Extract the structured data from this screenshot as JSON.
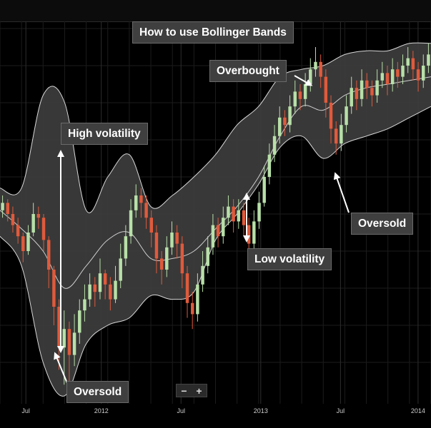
{
  "title": "How to use Bollinger Bands",
  "annotations": {
    "overbought": "Overbought",
    "high_volatility": "High volatility",
    "low_volatility": "Low volatility",
    "oversold_right": "Oversold",
    "oversold_left": "Oversold"
  },
  "zoom": {
    "minus": "−",
    "plus": "+"
  },
  "colors": {
    "up": "#b8e0a8",
    "down": "#e05a3c",
    "band_fill": "#3d3d3d",
    "band_edge": "#d8d8d8",
    "midline": "#cfcfcf",
    "background": "#000000"
  },
  "chart_data": {
    "type": "candlestick",
    "title": "How to use Bollinger Bands",
    "indicator": "Bollinger Bands",
    "x_ticks": [
      "Jul",
      "2012",
      "Jul",
      "2013",
      "Jul",
      "2014"
    ],
    "grid": true,
    "legend": "none",
    "y_range": [
      0,
      100
    ],
    "bands": {
      "x": [
        0,
        5,
        10,
        15,
        20,
        25,
        30,
        35,
        40,
        45,
        50,
        55,
        60,
        65,
        70,
        75,
        80,
        85,
        90,
        95,
        100
      ],
      "upper": [
        57,
        57,
        82,
        80,
        51,
        60,
        66,
        52,
        55,
        60,
        66,
        74,
        79,
        87,
        89,
        90,
        93,
        94,
        94,
        96,
        96
      ],
      "middle": [
        51,
        46,
        40,
        30,
        36,
        43,
        45,
        38,
        38,
        40,
        46,
        52,
        60,
        71,
        79,
        78,
        82,
        84,
        85,
        86,
        87
      ],
      "lower": [
        44,
        36,
        10,
        1,
        15,
        20,
        22,
        28,
        27,
        29,
        43,
        50,
        58,
        68,
        71,
        65,
        69,
        71,
        73,
        76,
        79
      ]
    },
    "candles": [
      {
        "o": 51,
        "c": 53,
        "h": 55,
        "l": 49
      },
      {
        "o": 53,
        "c": 50,
        "h": 54,
        "l": 48
      },
      {
        "o": 50,
        "c": 47,
        "h": 52,
        "l": 45
      },
      {
        "o": 47,
        "c": 44,
        "h": 49,
        "l": 42
      },
      {
        "o": 44,
        "c": 40,
        "h": 45,
        "l": 37
      },
      {
        "o": 40,
        "c": 45,
        "h": 47,
        "l": 39
      },
      {
        "o": 45,
        "c": 50,
        "h": 53,
        "l": 44
      },
      {
        "o": 50,
        "c": 49,
        "h": 52,
        "l": 46
      },
      {
        "o": 49,
        "c": 43,
        "h": 50,
        "l": 40
      },
      {
        "o": 43,
        "c": 35,
        "h": 44,
        "l": 30
      },
      {
        "o": 35,
        "c": 25,
        "h": 36,
        "l": 20
      },
      {
        "o": 25,
        "c": 14,
        "h": 27,
        "l": 8
      },
      {
        "o": 14,
        "c": 19,
        "h": 24,
        "l": 4
      },
      {
        "o": 19,
        "c": 12,
        "h": 21,
        "l": 0
      },
      {
        "o": 12,
        "c": 18,
        "h": 23,
        "l": 9
      },
      {
        "o": 18,
        "c": 24,
        "h": 27,
        "l": 15
      },
      {
        "o": 24,
        "c": 27,
        "h": 31,
        "l": 21
      },
      {
        "o": 27,
        "c": 31,
        "h": 34,
        "l": 25
      },
      {
        "o": 31,
        "c": 29,
        "h": 33,
        "l": 25
      },
      {
        "o": 29,
        "c": 34,
        "h": 38,
        "l": 27
      },
      {
        "o": 34,
        "c": 31,
        "h": 35,
        "l": 27
      },
      {
        "o": 31,
        "c": 27,
        "h": 33,
        "l": 24
      },
      {
        "o": 27,
        "c": 32,
        "h": 36,
        "l": 26
      },
      {
        "o": 32,
        "c": 38,
        "h": 42,
        "l": 30
      },
      {
        "o": 38,
        "c": 44,
        "h": 47,
        "l": 36
      },
      {
        "o": 44,
        "c": 51,
        "h": 54,
        "l": 42
      },
      {
        "o": 51,
        "c": 55,
        "h": 58,
        "l": 49
      },
      {
        "o": 55,
        "c": 53,
        "h": 57,
        "l": 49
      },
      {
        "o": 53,
        "c": 49,
        "h": 55,
        "l": 46
      },
      {
        "o": 49,
        "c": 45,
        "h": 51,
        "l": 41
      },
      {
        "o": 45,
        "c": 38,
        "h": 47,
        "l": 34
      },
      {
        "o": 38,
        "c": 35,
        "h": 40,
        "l": 31
      },
      {
        "o": 35,
        "c": 41,
        "h": 44,
        "l": 33
      },
      {
        "o": 41,
        "c": 45,
        "h": 48,
        "l": 39
      },
      {
        "o": 45,
        "c": 42,
        "h": 47,
        "l": 38
      },
      {
        "o": 42,
        "c": 34,
        "h": 44,
        "l": 30
      },
      {
        "o": 34,
        "c": 26,
        "h": 36,
        "l": 22
      },
      {
        "o": 26,
        "c": 23,
        "h": 29,
        "l": 19
      },
      {
        "o": 23,
        "c": 31,
        "h": 34,
        "l": 21
      },
      {
        "o": 31,
        "c": 36,
        "h": 40,
        "l": 29
      },
      {
        "o": 36,
        "c": 41,
        "h": 44,
        "l": 34
      },
      {
        "o": 41,
        "c": 47,
        "h": 50,
        "l": 39
      },
      {
        "o": 47,
        "c": 44,
        "h": 49,
        "l": 41
      },
      {
        "o": 44,
        "c": 49,
        "h": 52,
        "l": 42
      },
      {
        "o": 49,
        "c": 52,
        "h": 55,
        "l": 47
      },
      {
        "o": 52,
        "c": 48,
        "h": 54,
        "l": 45
      },
      {
        "o": 48,
        "c": 51,
        "h": 54,
        "l": 46
      },
      {
        "o": 51,
        "c": 47,
        "h": 53,
        "l": 44
      },
      {
        "o": 47,
        "c": 42,
        "h": 49,
        "l": 39
      },
      {
        "o": 42,
        "c": 48,
        "h": 51,
        "l": 40
      },
      {
        "o": 48,
        "c": 53,
        "h": 56,
        "l": 46
      },
      {
        "o": 53,
        "c": 60,
        "h": 63,
        "l": 52
      },
      {
        "o": 60,
        "c": 66,
        "h": 69,
        "l": 58
      },
      {
        "o": 66,
        "c": 71,
        "h": 74,
        "l": 64
      },
      {
        "o": 71,
        "c": 76,
        "h": 79,
        "l": 69
      },
      {
        "o": 76,
        "c": 74,
        "h": 78,
        "l": 71
      },
      {
        "o": 74,
        "c": 79,
        "h": 82,
        "l": 72
      },
      {
        "o": 79,
        "c": 83,
        "h": 86,
        "l": 77
      },
      {
        "o": 83,
        "c": 81,
        "h": 85,
        "l": 78
      },
      {
        "o": 81,
        "c": 85,
        "h": 88,
        "l": 79
      },
      {
        "o": 85,
        "c": 89,
        "h": 92,
        "l": 83
      },
      {
        "o": 89,
        "c": 91,
        "h": 95,
        "l": 87
      },
      {
        "o": 91,
        "c": 87,
        "h": 93,
        "l": 84
      },
      {
        "o": 87,
        "c": 80,
        "h": 89,
        "l": 76
      },
      {
        "o": 80,
        "c": 73,
        "h": 82,
        "l": 69
      },
      {
        "o": 73,
        "c": 69,
        "h": 75,
        "l": 66
      },
      {
        "o": 69,
        "c": 74,
        "h": 77,
        "l": 67
      },
      {
        "o": 74,
        "c": 79,
        "h": 82,
        "l": 72
      },
      {
        "o": 79,
        "c": 84,
        "h": 87,
        "l": 77
      },
      {
        "o": 84,
        "c": 81,
        "h": 86,
        "l": 78
      },
      {
        "o": 81,
        "c": 86,
        "h": 89,
        "l": 79
      },
      {
        "o": 86,
        "c": 84,
        "h": 88,
        "l": 81
      },
      {
        "o": 84,
        "c": 82,
        "h": 86,
        "l": 79
      },
      {
        "o": 82,
        "c": 86,
        "h": 89,
        "l": 80
      },
      {
        "o": 86,
        "c": 88,
        "h": 91,
        "l": 84
      },
      {
        "o": 88,
        "c": 85,
        "h": 90,
        "l": 82
      },
      {
        "o": 85,
        "c": 89,
        "h": 92,
        "l": 83
      },
      {
        "o": 89,
        "c": 87,
        "h": 91,
        "l": 84
      },
      {
        "o": 87,
        "c": 90,
        "h": 93,
        "l": 85
      },
      {
        "o": 90,
        "c": 92,
        "h": 95,
        "l": 88
      },
      {
        "o": 92,
        "c": 89,
        "h": 94,
        "l": 86
      },
      {
        "o": 89,
        "c": 86,
        "h": 91,
        "l": 83
      },
      {
        "o": 86,
        "c": 90,
        "h": 93,
        "l": 84
      },
      {
        "o": 90,
        "c": 93,
        "h": 96,
        "l": 88
      }
    ]
  }
}
